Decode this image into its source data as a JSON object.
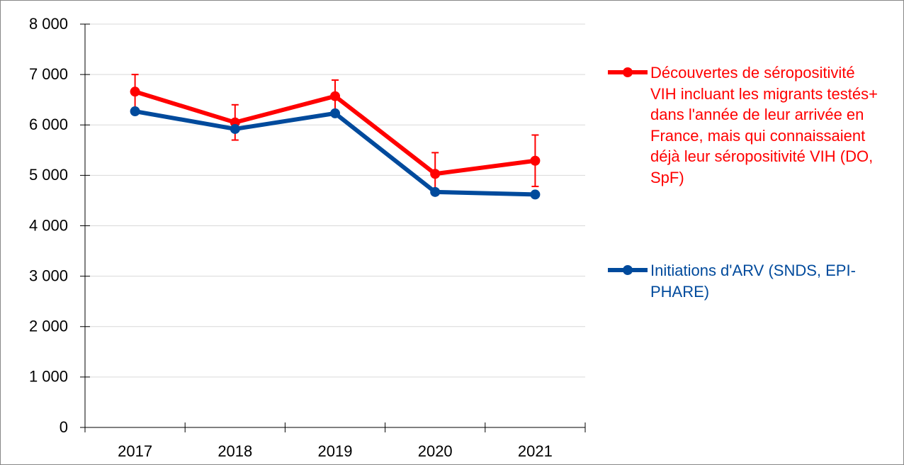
{
  "chart_data": {
    "type": "line",
    "categories": [
      "2017",
      "2018",
      "2019",
      "2020",
      "2021"
    ],
    "series": [
      {
        "name": "Découvertes de séropositivité VIH incluant les migrants testés+ dans l'année de leur arrivée en France, mais qui connaissaient déjà leur séropositivité VIH (DO, SpF)",
        "color": "#ff0000",
        "values": [
          6660,
          6050,
          6570,
          5030,
          5290
        ],
        "error": [
          340,
          350,
          320,
          420,
          510
        ]
      },
      {
        "name": "Initiations d'ARV (SNDS, EPI-PHARE)",
        "color": "#004a9c",
        "values": [
          6270,
          5920,
          6230,
          4670,
          4620
        ]
      }
    ],
    "ylim": [
      0,
      8000
    ],
    "yticks": [
      0,
      {
        "value": 1000,
        "label": "1 000"
      },
      {
        "value": 2000,
        "label": "2 000"
      },
      {
        "value": 3000,
        "label": "3 000"
      },
      {
        "value": 4000,
        "label": "4 000"
      },
      {
        "value": 5000,
        "label": "5 000"
      },
      {
        "value": 6000,
        "label": "6 000"
      },
      {
        "value": 7000,
        "label": "7 000"
      },
      {
        "value": 8000,
        "label": "8 000"
      }
    ],
    "grid": true,
    "legend": "right"
  }
}
